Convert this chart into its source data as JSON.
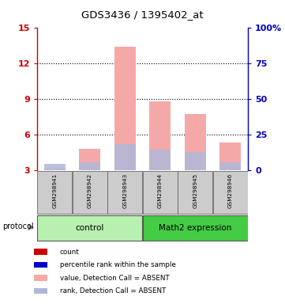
{
  "title": "GDS3436 / 1395402_at",
  "samples": [
    "GSM298941",
    "GSM298942",
    "GSM298943",
    "GSM298944",
    "GSM298945",
    "GSM298946"
  ],
  "value_heights": [
    3.15,
    4.8,
    13.4,
    8.8,
    7.7,
    5.3
  ],
  "rank_heights": [
    3.55,
    3.7,
    5.2,
    4.7,
    4.5,
    3.7
  ],
  "ylim_left": [
    3,
    15
  ],
  "ylim_right": [
    0,
    100
  ],
  "yticks_left": [
    3,
    6,
    9,
    12,
    15
  ],
  "yticks_right": [
    0,
    25,
    50,
    75,
    100
  ],
  "ytick_labels_left": [
    "3",
    "6",
    "9",
    "12",
    "15"
  ],
  "ytick_labels_right": [
    "0",
    "25",
    "50",
    "75",
    "100%"
  ],
  "bar_color_value": "#f4a9a8",
  "bar_color_rank": "#b0b8d8",
  "group_colors": [
    "#b8f0b0",
    "#44cc44"
  ],
  "group_names": [
    "control",
    "Math2 expression"
  ],
  "group_splits": [
    3,
    6
  ],
  "legend_items": [
    {
      "color": "#cc0000",
      "label": "count"
    },
    {
      "color": "#0000cc",
      "label": "percentile rank within the sample"
    },
    {
      "color": "#f4a9a8",
      "label": "value, Detection Call = ABSENT"
    },
    {
      "color": "#b0b8d8",
      "label": "rank, Detection Call = ABSENT"
    }
  ],
  "protocol_label": "protocol",
  "background_color": "#ffffff",
  "plot_bg_color": "#ffffff",
  "axis_color_left": "#cc0000",
  "axis_color_right": "#0000bb",
  "sample_box_color": "#cccccc",
  "bar_width": 0.6
}
